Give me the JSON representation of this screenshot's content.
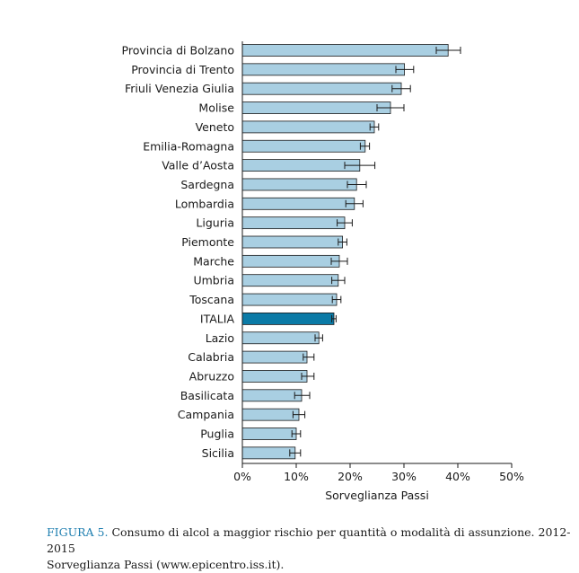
{
  "caption": {
    "figure_number": "FIGURA 5.",
    "line1": " Consumo di alcol a maggior rischio per quantità o modalità di assunzione. 2012-2015",
    "line2": "Sorveglianza Passi (www.epicentro.iss.it)."
  },
  "chart_data": {
    "type": "bar",
    "orientation": "horizontal",
    "xlabel": "Sorveglianza Passi",
    "xlim": [
      0,
      50
    ],
    "x_ticks": [
      0,
      10,
      20,
      30,
      40,
      50
    ],
    "x_tick_labels": [
      "0%",
      "10%",
      "20%",
      "30%",
      "40%",
      "50%"
    ],
    "grid": false,
    "categories": [
      "Provincia di Bolzano",
      "Provincia di Trento",
      "Friuli Venezia Giulia",
      "Molise",
      "Veneto",
      "Emilia-Romagna",
      "Valle d’Aosta",
      "Sardegna",
      "Lombardia",
      "Liguria",
      "Piemonte",
      "Marche",
      "Umbria",
      "Toscana",
      "ITALIA",
      "Lazio",
      "Calabria",
      "Abruzzo",
      "Basilicata",
      "Campania",
      "Puglia",
      "Sicilia"
    ],
    "values": [
      38.2,
      30.1,
      29.5,
      27.5,
      24.5,
      22.8,
      21.8,
      21.2,
      20.8,
      19.0,
      18.6,
      18.0,
      17.8,
      17.5,
      17.0,
      14.2,
      12.0,
      12.0,
      11.0,
      10.5,
      10.0,
      9.8
    ],
    "error_low": [
      36.0,
      28.5,
      27.8,
      25.0,
      23.7,
      21.9,
      19.0,
      19.5,
      19.2,
      17.6,
      17.8,
      16.5,
      16.6,
      16.7,
      16.6,
      13.5,
      11.3,
      11.0,
      9.7,
      9.4,
      9.2,
      8.8
    ],
    "error_high": [
      40.5,
      31.8,
      31.2,
      30.0,
      25.3,
      23.6,
      24.6,
      23.0,
      22.4,
      20.4,
      19.4,
      19.5,
      19.0,
      18.3,
      17.4,
      14.9,
      13.3,
      13.3,
      12.5,
      11.6,
      10.8,
      10.8
    ],
    "highlight_category": "ITALIA",
    "colors": {
      "bar": "#a9cfe2",
      "highlight": "#0a7aa6",
      "outline": "#1a1a1a"
    }
  }
}
